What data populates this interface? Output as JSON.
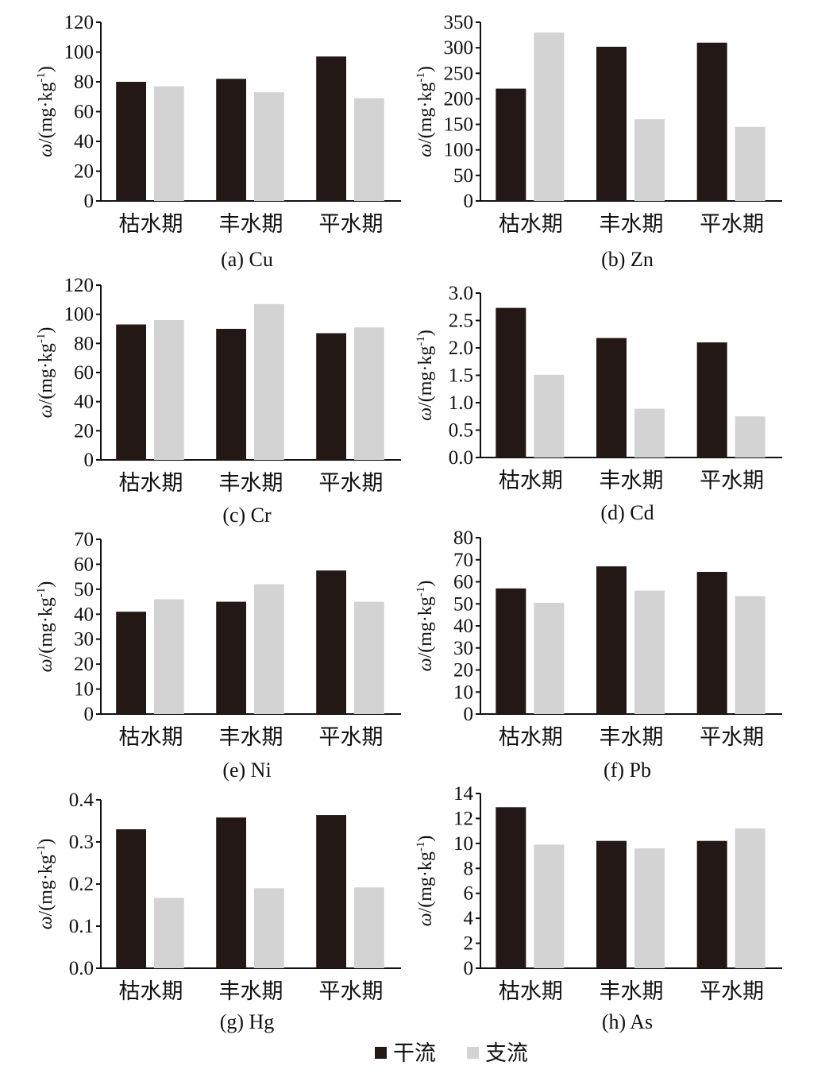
{
  "colors": {
    "mainstream": "#231815",
    "tributary": "#d3d3d3",
    "axis": "#111111"
  },
  "legend": [
    {
      "label": "干流",
      "color": "#231815"
    },
    {
      "label": "支流",
      "color": "#d3d3d3"
    }
  ],
  "chart_data": [
    {
      "type": "bar",
      "title": "(a) Cu",
      "xlabel": "",
      "ylabel": "ω/(mg·kg-1)",
      "categories": [
        "枯水期",
        "丰水期",
        "平水期"
      ],
      "ylim": [
        0,
        120
      ],
      "yticks": [
        0,
        20,
        40,
        60,
        80,
        100,
        120
      ],
      "tick_decimals": 0,
      "series": [
        {
          "name": "干流",
          "values": [
            80,
            82,
            97
          ]
        },
        {
          "name": "支流",
          "values": [
            77,
            73,
            69
          ]
        }
      ]
    },
    {
      "type": "bar",
      "title": "(b) Zn",
      "xlabel": "",
      "ylabel": "ω/(mg·kg-1)",
      "categories": [
        "枯水期",
        "丰水期",
        "平水期"
      ],
      "ylim": [
        0,
        350
      ],
      "yticks": [
        0,
        50,
        100,
        150,
        200,
        250,
        300,
        350
      ],
      "tick_decimals": 0,
      "series": [
        {
          "name": "干流",
          "values": [
            220,
            302,
            310
          ]
        },
        {
          "name": "支流",
          "values": [
            330,
            160,
            145
          ]
        }
      ]
    },
    {
      "type": "bar",
      "title": "(c) Cr",
      "xlabel": "",
      "ylabel": "ω/(mg·kg-1)",
      "categories": [
        "枯水期",
        "丰水期",
        "平水期"
      ],
      "ylim": [
        0,
        120
      ],
      "yticks": [
        0,
        20,
        40,
        60,
        80,
        100,
        120
      ],
      "tick_decimals": 0,
      "series": [
        {
          "name": "干流",
          "values": [
            93,
            90,
            87
          ]
        },
        {
          "name": "支流",
          "values": [
            96,
            107,
            91
          ]
        }
      ]
    },
    {
      "type": "bar",
      "title": "(d) Cd",
      "xlabel": "",
      "ylabel": "ω/(mg·kg-1)",
      "categories": [
        "枯水期",
        "丰水期",
        "平水期"
      ],
      "ylim": [
        0,
        3.0
      ],
      "yticks": [
        0,
        0.5,
        1.0,
        1.5,
        2.0,
        2.5,
        3.0
      ],
      "tick_decimals": 1,
      "series": [
        {
          "name": "干流",
          "values": [
            2.73,
            2.18,
            2.1
          ]
        },
        {
          "name": "支流",
          "values": [
            1.51,
            0.89,
            0.75
          ]
        }
      ]
    },
    {
      "type": "bar",
      "title": "(e) Ni",
      "xlabel": "",
      "ylabel": "ω/(mg·kg-1)",
      "categories": [
        "枯水期",
        "丰水期",
        "平水期"
      ],
      "ylim": [
        0,
        70
      ],
      "yticks": [
        0,
        10,
        20,
        30,
        40,
        50,
        60,
        70
      ],
      "tick_decimals": 0,
      "series": [
        {
          "name": "干流",
          "values": [
            41,
            45,
            57.5
          ]
        },
        {
          "name": "支流",
          "values": [
            46,
            52,
            45
          ]
        }
      ]
    },
    {
      "type": "bar",
      "title": "(f) Pb",
      "xlabel": "",
      "ylabel": "ω/(mg·kg-1)",
      "categories": [
        "枯水期",
        "丰水期",
        "平水期"
      ],
      "ylim": [
        0,
        80
      ],
      "yticks": [
        0,
        10,
        20,
        30,
        40,
        50,
        60,
        70,
        80
      ],
      "tick_decimals": 0,
      "series": [
        {
          "name": "干流",
          "values": [
            57,
            67,
            64.5
          ]
        },
        {
          "name": "支流",
          "values": [
            50.5,
            56,
            53.5
          ]
        }
      ]
    },
    {
      "type": "bar",
      "title": "(g) Hg",
      "xlabel": "",
      "ylabel": "ω/(mg·kg-1)",
      "categories": [
        "枯水期",
        "丰水期",
        "平水期"
      ],
      "ylim": [
        0,
        0.4
      ],
      "yticks": [
        0,
        0.1,
        0.2,
        0.3,
        0.4
      ],
      "tick_decimals": 1,
      "series": [
        {
          "name": "干流",
          "values": [
            0.33,
            0.358,
            0.364
          ]
        },
        {
          "name": "支流",
          "values": [
            0.167,
            0.19,
            0.192
          ]
        }
      ]
    },
    {
      "type": "bar",
      "title": "(h) As",
      "xlabel": "",
      "ylabel": "ω/(mg·kg-1)",
      "categories": [
        "枯水期",
        "丰水期",
        "平水期"
      ],
      "ylim": [
        0,
        14
      ],
      "yticks": [
        0,
        2,
        4,
        6,
        8,
        10,
        12,
        14
      ],
      "tick_decimals": 0,
      "series": [
        {
          "name": "干流",
          "values": [
            12.9,
            10.2,
            10.2
          ]
        },
        {
          "name": "支流",
          "values": [
            9.9,
            9.6,
            11.2
          ]
        }
      ]
    }
  ]
}
